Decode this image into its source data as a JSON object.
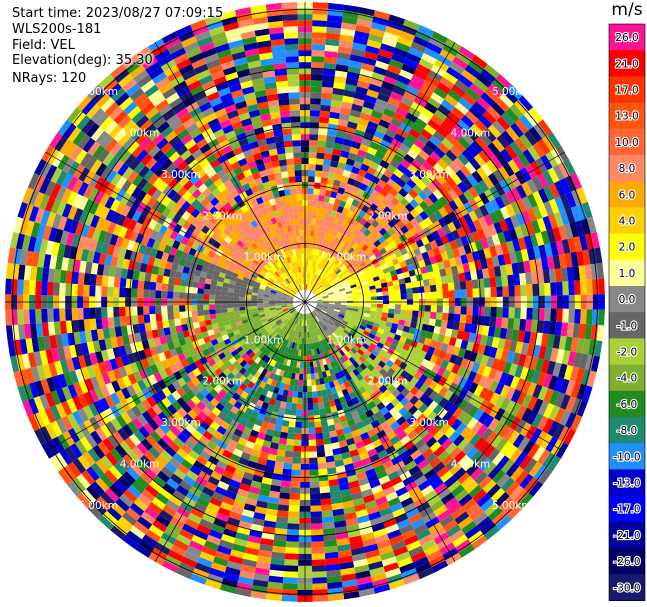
{
  "header": {
    "start_time": "Start time: 2023/08/27 07:09:15",
    "station": "WLS200s-181",
    "field": "Field: VEL",
    "elevation": "Elevation(deg): 35.30",
    "nrays": "NRays: 120"
  },
  "chart_data": {
    "type": "heatmap",
    "projection": "polar (PPI)",
    "field": "VEL",
    "units": "m/s",
    "n_rays": 120,
    "elevation_deg": 35.3,
    "range_rings_km": [
      1.0,
      2.0,
      3.0,
      4.0,
      5.0
    ],
    "range_labels": [
      "1.00km",
      "2.00km",
      "3.00km",
      "4.00km",
      "5.00km"
    ],
    "radial_lines_deg": [
      0,
      30,
      60,
      90,
      120,
      150,
      180,
      210,
      240,
      270,
      300,
      330
    ],
    "colorbar": {
      "title": "m/s",
      "tick_labels": [
        "26.0",
        "21.0",
        "17.0",
        "13.0",
        "10.0",
        "8.0",
        "6.0",
        "4.0",
        "2.0",
        "1.0",
        "0.0",
        "-1.0",
        "-2.0",
        "-4.0",
        "-6.0",
        "-8.0",
        "-10.0",
        "-13.0",
        "-17.0",
        "-21.0",
        "-26.0",
        "-30.0"
      ],
      "colors": [
        "#ff1493",
        "#ff0000",
        "#ff3300",
        "#ff5511",
        "#ff6633",
        "#ff8866",
        "#ffaa00",
        "#ffd000",
        "#ffff00",
        "#ffff99",
        "#888888",
        "#666666",
        "#aad038",
        "#7fb030",
        "#228b22",
        "#1f8a70",
        "#1e90ff",
        "#0000cd",
        "#0000ff",
        "#0000a0",
        "#000066",
        "#191970"
      ]
    }
  }
}
